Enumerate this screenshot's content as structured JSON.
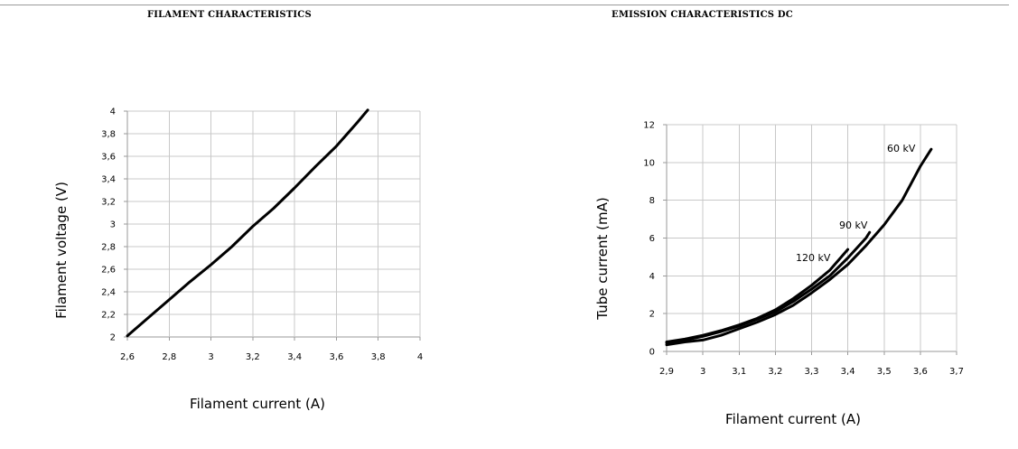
{
  "chart_data": [
    {
      "type": "line",
      "title": "FILAMENT CHARACTERISTICS",
      "xlabel": "Filament current (A)",
      "ylabel": "Filament voltage (V)",
      "xlim": [
        2.6,
        4.0
      ],
      "ylim": [
        2.0,
        4.0
      ],
      "xticks": [
        "2,6",
        "2,8",
        "3",
        "3,2",
        "3,4",
        "3,6",
        "3,8",
        "4"
      ],
      "yticks": [
        "2",
        "2,2",
        "2,4",
        "2,6",
        "2,8",
        "3",
        "3,2",
        "3,4",
        "3,6",
        "3,8",
        "4"
      ],
      "grid": true,
      "series": [
        {
          "x": [
            2.6,
            2.7,
            2.8,
            2.9,
            3.0,
            3.1,
            3.2,
            3.3,
            3.4,
            3.5,
            3.6,
            3.7,
            3.75
          ],
          "y": [
            2.01,
            2.17,
            2.33,
            2.49,
            2.64,
            2.8,
            2.98,
            3.14,
            3.32,
            3.51,
            3.69,
            3.9,
            4.01
          ]
        }
      ]
    },
    {
      "type": "line",
      "title": "EMISSION CHARACTERISTICS DC",
      "xlabel": "Filament current (A)",
      "ylabel": "Tube current (mA)",
      "xlim": [
        2.9,
        3.7
      ],
      "ylim": [
        0,
        12
      ],
      "xticks": [
        "2,9",
        "3",
        "3,1",
        "3,2",
        "3,3",
        "3,4",
        "3,5",
        "3,6",
        "3,7"
      ],
      "yticks": [
        "0",
        "2",
        "4",
        "6",
        "8",
        "10",
        "12"
      ],
      "grid": true,
      "series": [
        {
          "name": "60 kV",
          "x": [
            2.9,
            2.95,
            3.0,
            3.05,
            3.1,
            3.15,
            3.2,
            3.25,
            3.3,
            3.35,
            3.4,
            3.45,
            3.5,
            3.55,
            3.6,
            3.63
          ],
          "y": [
            0.35,
            0.5,
            0.6,
            0.85,
            1.2,
            1.55,
            1.95,
            2.45,
            3.1,
            3.8,
            4.6,
            5.6,
            6.7,
            8.0,
            9.8,
            10.7
          ]
        },
        {
          "name": "90 kV",
          "x": [
            2.9,
            2.95,
            3.0,
            3.05,
            3.1,
            3.15,
            3.2,
            3.25,
            3.3,
            3.35,
            3.4,
            3.45,
            3.46
          ],
          "y": [
            0.45,
            0.6,
            0.8,
            1.05,
            1.35,
            1.7,
            2.1,
            2.65,
            3.3,
            4.0,
            4.95,
            6.0,
            6.3
          ]
        },
        {
          "name": "120 kV",
          "x": [
            2.9,
            2.95,
            3.0,
            3.05,
            3.1,
            3.15,
            3.2,
            3.25,
            3.3,
            3.35,
            3.4
          ],
          "y": [
            0.5,
            0.65,
            0.85,
            1.1,
            1.4,
            1.75,
            2.2,
            2.8,
            3.5,
            4.3,
            5.4
          ]
        }
      ]
    }
  ]
}
